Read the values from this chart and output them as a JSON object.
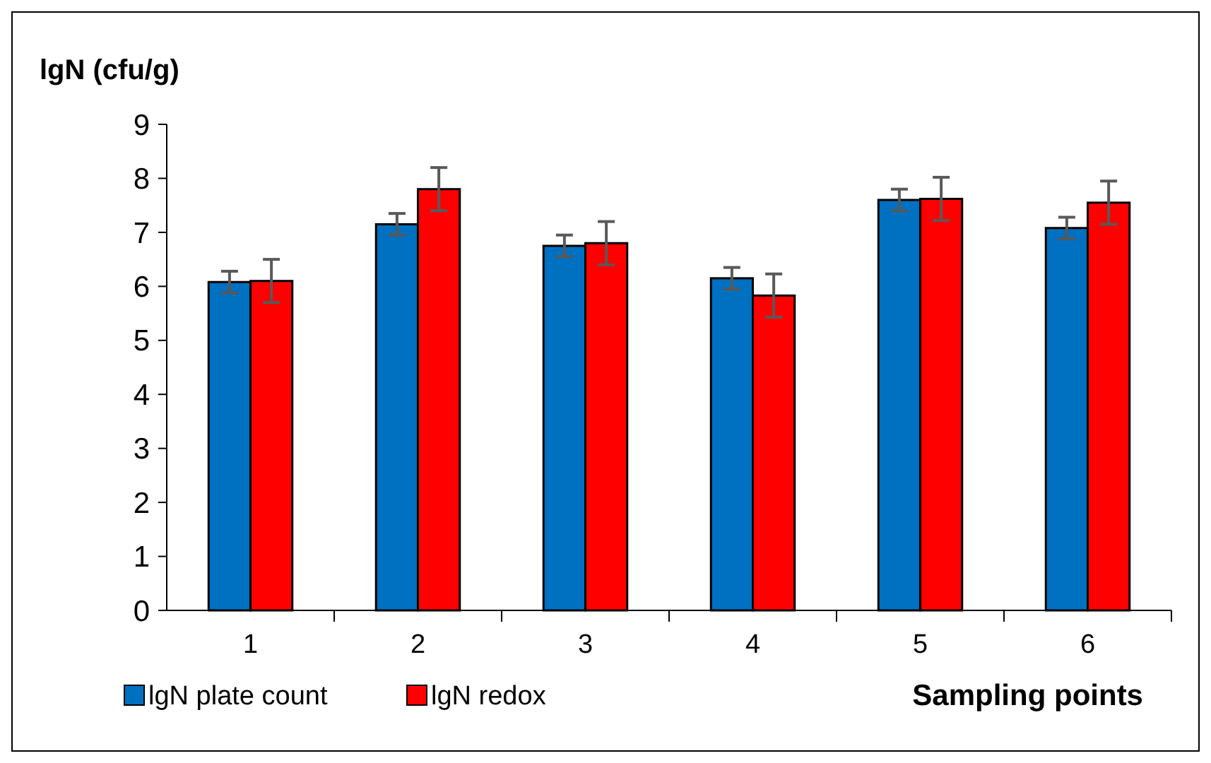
{
  "chart_data": {
    "type": "bar",
    "ylabel": "lgN (cfu/g)",
    "xlabel": "Sampling points",
    "categories": [
      "1",
      "2",
      "3",
      "4",
      "5",
      "6"
    ],
    "series": [
      {
        "name": "lgN plate count",
        "color": "#0070c0",
        "values": [
          6.08,
          7.15,
          6.75,
          6.15,
          7.6,
          7.08
        ],
        "errors": [
          0.2,
          0.2,
          0.2,
          0.2,
          0.2,
          0.2
        ]
      },
      {
        "name": "lgN redox",
        "color": "#ff0000",
        "values": [
          6.1,
          7.8,
          6.8,
          5.83,
          7.62,
          7.55
        ],
        "errors": [
          0.4,
          0.4,
          0.4,
          0.4,
          0.4,
          0.4
        ]
      }
    ],
    "ylim": [
      0,
      9
    ],
    "yticks": [
      0,
      1,
      2,
      3,
      4,
      5,
      6,
      7,
      8,
      9
    ],
    "grid": false,
    "legend": "bottom"
  }
}
